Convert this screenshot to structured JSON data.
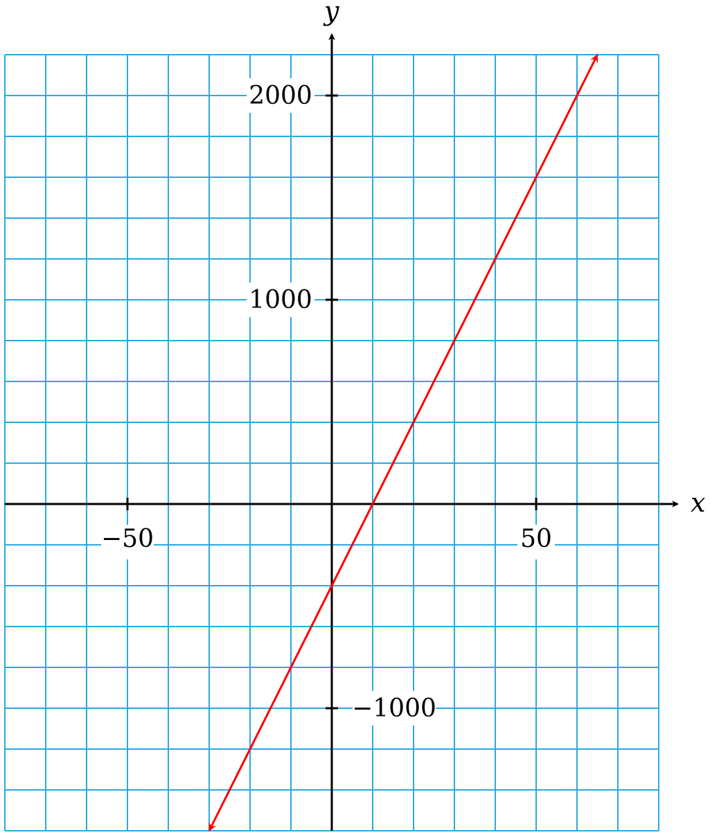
{
  "chart_data": {
    "type": "line",
    "xlabel": "x",
    "ylabel": "y",
    "xlim": [
      -80,
      80
    ],
    "ylim": [
      -1600,
      2200
    ],
    "grid": true,
    "grid_step_x": 10,
    "grid_step_y": 200,
    "x_ticks": [
      {
        "value": -50,
        "label": "−50"
      },
      {
        "value": 50,
        "label": "50"
      }
    ],
    "y_ticks": [
      {
        "value": 2000,
        "label": "2000"
      },
      {
        "value": 1000,
        "label": "1000"
      },
      {
        "value": -1000,
        "label": "−1000"
      }
    ],
    "series": [
      {
        "x": [
          -30,
          65
        ],
        "y": [
          -1600,
          2200
        ],
        "arrows": "both",
        "color": "#ff0000"
      }
    ]
  },
  "colors": {
    "grid": "#29a9e0",
    "axis": "#000000",
    "line": "#ff0000",
    "background": "#ffffff"
  }
}
